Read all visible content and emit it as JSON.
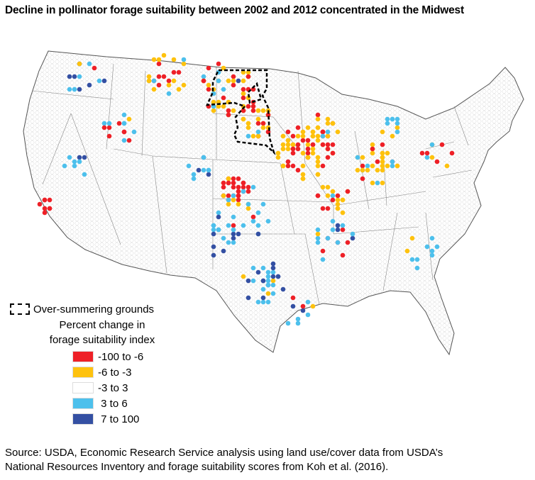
{
  "title": "Decline in pollinator forage suitability between 2002 and 2012 concentrated in the Midwest",
  "legend": {
    "outline_label": "Over-summering grounds",
    "heading_line1": "Percent change in",
    "heading_line2": "forage suitability index",
    "classes": [
      {
        "label": "-100 to -6",
        "color": "#ee2027"
      },
      {
        "label": "-6 to -3",
        "color": "#fec20e"
      },
      {
        "label": "-3 to 3",
        "color": "#ffffff"
      },
      {
        "label": " 3 to 6",
        "color": "#4dc0ec"
      },
      {
        "label": " 7 to 100",
        "color": "#3450a3"
      }
    ]
  },
  "source": {
    "line1": "Source: USDA, Economic Research Service analysis using land use/cover data from USDA’s",
    "line2": "National Resources Inventory and forage suitability scores from Koh et al. (2016)."
  }
}
